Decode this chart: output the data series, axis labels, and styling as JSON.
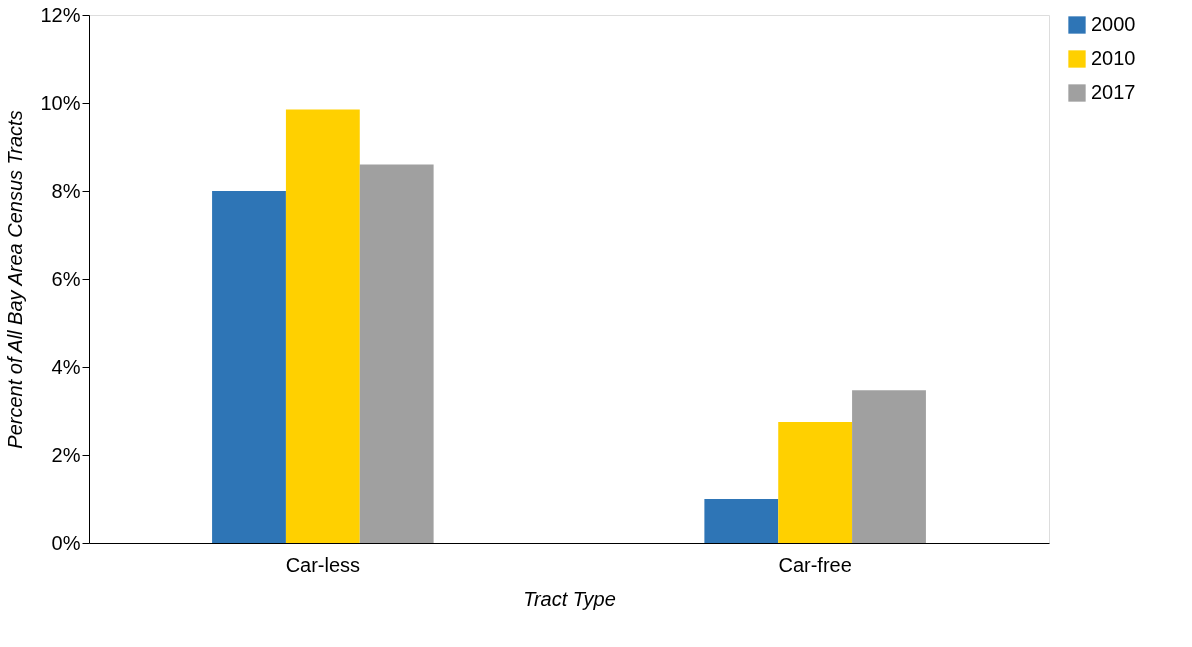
{
  "chart_data": {
    "type": "bar",
    "xlabel": "Tract Type",
    "ylabel": "Percent of All Bay Area Census Tracts",
    "categories": [
      "Car-less",
      "Car-free"
    ],
    "series": [
      {
        "name": "2000",
        "color": "#2e75b6",
        "values": [
          8.0,
          1.0
        ]
      },
      {
        "name": "2010",
        "color": "#ffd000",
        "values": [
          9.85,
          2.75
        ]
      },
      {
        "name": "2017",
        "color": "#a0a0a0",
        "values": [
          8.6,
          3.47
        ]
      }
    ],
    "ylim": [
      0,
      12
    ],
    "yticks": [
      {
        "value": 0,
        "label": "0%"
      },
      {
        "value": 2,
        "label": "2%"
      },
      {
        "value": 4,
        "label": "4%"
      },
      {
        "value": 6,
        "label": "6%"
      },
      {
        "value": 8,
        "label": "8%"
      },
      {
        "value": 10,
        "label": "10%"
      },
      {
        "value": 12,
        "label": "12%"
      }
    ],
    "grid": false,
    "legend": "right"
  }
}
